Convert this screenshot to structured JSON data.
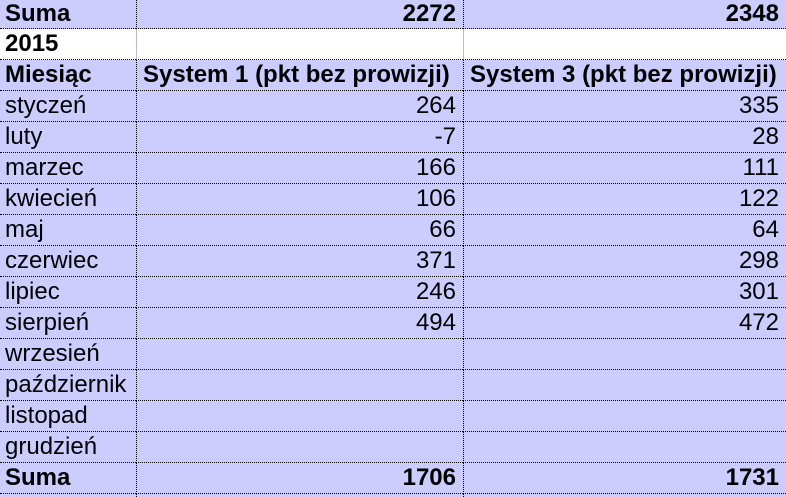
{
  "colors": {
    "cell_background": "#ccccff",
    "year_row_background": "#ffffff",
    "grid_border": "#000000",
    "year_row_gridline": "#b7bdd7",
    "text": "#000000"
  },
  "table": {
    "top_summary": {
      "label": "Suma",
      "system1": "2272",
      "system3": "2348"
    },
    "year": "2015",
    "header": {
      "month": "Miesiąc",
      "system1": "System 1 (pkt bez prowizji)",
      "system3": "System 3 (pkt bez prowizji)"
    },
    "rows": [
      {
        "month": "styczeń",
        "s1": "264",
        "s3": "335"
      },
      {
        "month": "luty",
        "s1": "-7",
        "s3": "28"
      },
      {
        "month": "marzec",
        "s1": "166",
        "s3": "111"
      },
      {
        "month": "kwiecień",
        "s1": "106",
        "s3": "122"
      },
      {
        "month": "maj",
        "s1": "66",
        "s3": "64"
      },
      {
        "month": "czerwiec",
        "s1": "371",
        "s3": "298"
      },
      {
        "month": "lipiec",
        "s1": "246",
        "s3": "301"
      },
      {
        "month": "sierpień",
        "s1": "494",
        "s3": "472"
      },
      {
        "month": "wrzesień",
        "s1": "",
        "s3": ""
      },
      {
        "month": "październik",
        "s1": "",
        "s3": ""
      },
      {
        "month": "listopad",
        "s1": "",
        "s3": ""
      },
      {
        "month": "grudzień",
        "s1": "",
        "s3": ""
      }
    ],
    "bottom_summary": {
      "label": "Suma",
      "system1": "1706",
      "system3": "1731"
    }
  }
}
